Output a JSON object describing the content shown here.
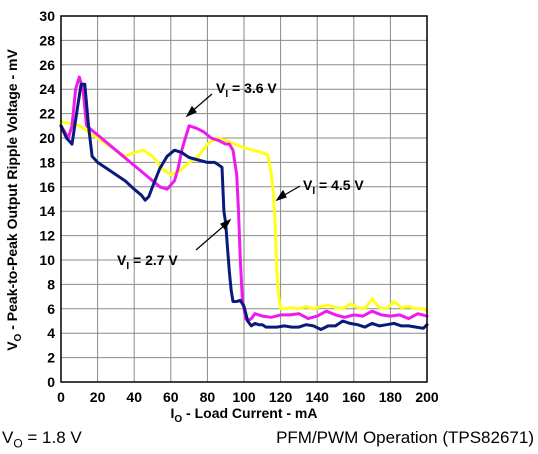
{
  "chart_data": {
    "type": "line",
    "title": "",
    "xlabel": {
      "main": "I",
      "sub": "O",
      "rest": " - Load Current - mA"
    },
    "ylabel": {
      "main": "V",
      "sub": "O",
      "rest": " - Peak-to-Peak Output Ripple Voltage - mV"
    },
    "xlim": [
      0,
      200
    ],
    "ylim": [
      0,
      30
    ],
    "xticks": [
      0,
      20,
      40,
      60,
      80,
      100,
      120,
      140,
      160,
      180,
      200
    ],
    "yticks": [
      0,
      2,
      4,
      6,
      8,
      10,
      12,
      14,
      16,
      18,
      20,
      22,
      24,
      26,
      28,
      30
    ],
    "grid": true,
    "legend": "none",
    "series": [
      {
        "name": "VI = 2.7 V",
        "color": "#0a1a7a",
        "x": [
          0,
          3,
          6,
          9,
          11,
          13,
          15,
          17,
          20,
          25,
          30,
          35,
          40,
          44,
          46,
          48,
          50,
          54,
          58,
          62,
          66,
          70,
          75,
          80,
          84,
          86,
          88,
          89,
          90,
          91,
          92,
          93,
          94,
          96,
          98,
          100,
          102,
          104,
          106,
          108,
          110,
          112,
          115,
          118,
          122,
          126,
          130,
          134,
          138,
          142,
          146,
          150,
          154,
          158,
          162,
          166,
          170,
          174,
          178,
          182,
          186,
          190,
          194,
          198,
          200
        ],
        "y": [
          21,
          20,
          19.5,
          22.5,
          24.4,
          24.4,
          21,
          18.5,
          18,
          17.5,
          17,
          16.5,
          15.8,
          15.3,
          14.9,
          15.2,
          16,
          17.5,
          18.5,
          19,
          18.8,
          18.4,
          18.2,
          18,
          18,
          17.8,
          17.6,
          14,
          13,
          11,
          9,
          7.5,
          6.6,
          6.6,
          6.7,
          6.2,
          5,
          4.6,
          4.8,
          4.7,
          4.7,
          4.5,
          4.5,
          4.5,
          4.6,
          4.5,
          4.5,
          4.7,
          4.6,
          4.3,
          4.6,
          4.6,
          5,
          4.8,
          4.7,
          4.5,
          4.8,
          4.6,
          4.7,
          4.8,
          4.6,
          4.6,
          4.5,
          4.4,
          4.7
        ]
      },
      {
        "name": "VI = 3.6 V",
        "color": "#ee1aee",
        "x": [
          0,
          2,
          4,
          6,
          8,
          10,
          12,
          14,
          18,
          22,
          26,
          30,
          34,
          38,
          42,
          46,
          50,
          54,
          58,
          62,
          64,
          66,
          68,
          70,
          74,
          78,
          82,
          86,
          90,
          92,
          94,
          96,
          97,
          98,
          99,
          100,
          101,
          102,
          104,
          106,
          110,
          115,
          120,
          125,
          130,
          135,
          140,
          145,
          150,
          155,
          160,
          165,
          170,
          175,
          180,
          185,
          190,
          195,
          200
        ],
        "y": [
          21,
          20.5,
          20,
          21,
          24,
          25,
          24,
          21,
          20.5,
          20,
          19.5,
          19,
          18.5,
          18,
          17.5,
          17,
          16.5,
          16,
          15.8,
          16.5,
          17.5,
          19,
          20,
          21,
          20.8,
          20.5,
          20,
          19.8,
          19.5,
          19.5,
          19,
          17,
          14,
          10,
          7,
          6,
          5.2,
          5,
          5.2,
          5.6,
          5.4,
          5.3,
          5.5,
          5.5,
          5.6,
          5.2,
          5.4,
          5.8,
          5.5,
          5.3,
          5.5,
          5.4,
          5.8,
          5.5,
          5.4,
          5.5,
          5.2,
          5.6,
          5.4
        ]
      },
      {
        "name": "VI = 4.5 V",
        "color": "#ffff1a",
        "x": [
          0,
          5,
          10,
          15,
          20,
          25,
          30,
          35,
          40,
          45,
          50,
          55,
          60,
          65,
          70,
          75,
          80,
          85,
          90,
          95,
          100,
          105,
          110,
          113,
          115,
          116,
          117,
          118,
          119,
          120,
          122,
          126,
          130,
          134,
          138,
          142,
          146,
          150,
          154,
          158,
          162,
          166,
          170,
          174,
          178,
          182,
          186,
          190,
          194,
          198,
          200
        ],
        "y": [
          21.3,
          21.2,
          21,
          20.5,
          20,
          19.5,
          19,
          18.5,
          18.8,
          19,
          18.5,
          17.5,
          17,
          17.3,
          18,
          18.5,
          19.5,
          20,
          19.8,
          19.5,
          19.2,
          19,
          18.8,
          18.6,
          17,
          15.5,
          13,
          9,
          7,
          6,
          6,
          6.1,
          6,
          6.2,
          6,
          6.2,
          6.3,
          6.1,
          6,
          6.4,
          6.1,
          6,
          6.8,
          6.1,
          6,
          6.6,
          6.1,
          6.2,
          6,
          6,
          5.8
        ]
      }
    ],
    "annotations": [
      {
        "main": "V",
        "sub": "I",
        "rest": " = 3.6 V"
      },
      {
        "main": "V",
        "sub": "I",
        "rest": " = 4.5 V"
      },
      {
        "main": "V",
        "sub": "I",
        "rest": " = 2.7 V"
      }
    ]
  },
  "footer": {
    "left": {
      "main": "V",
      "sub": "O",
      "rest": " = 1.8 V"
    },
    "right": "PFM/PWM Operation (TPS82671)"
  }
}
